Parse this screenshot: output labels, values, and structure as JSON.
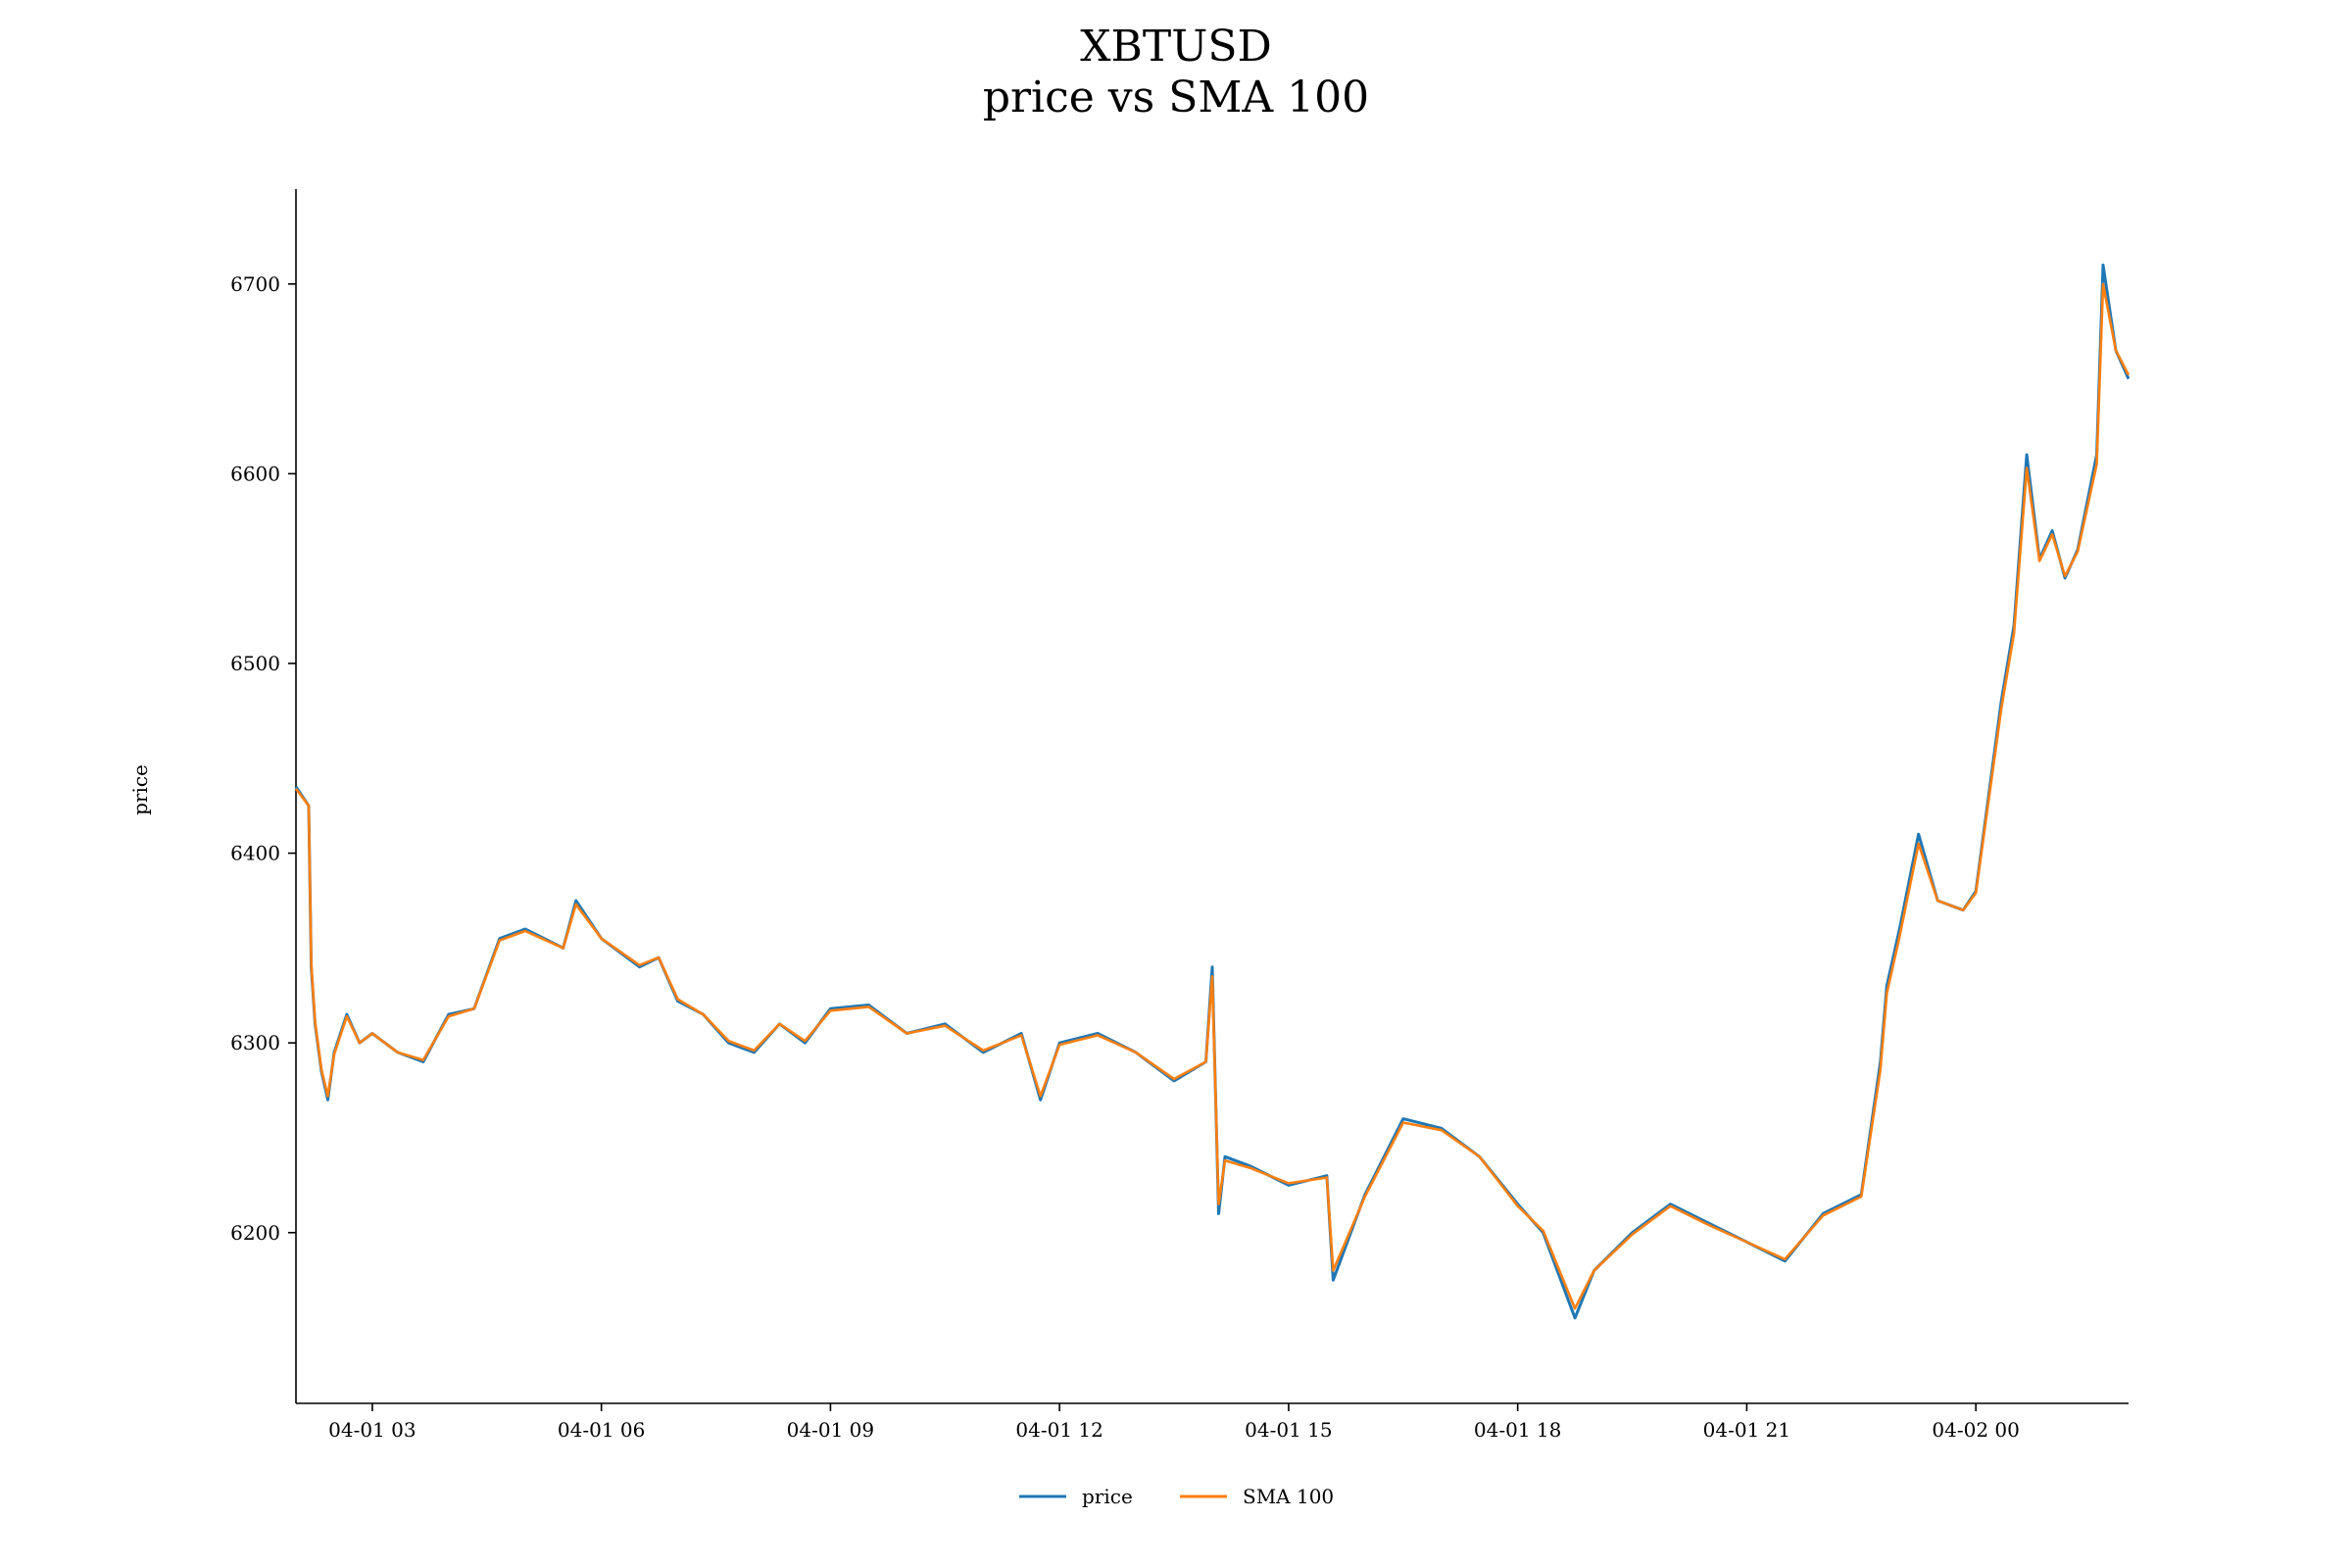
{
  "chart_data": {
    "type": "line",
    "title": "XBTUSD",
    "subtitle": "price vs SMA 100",
    "xlabel": "",
    "ylabel": "price",
    "x_axis_kind": "datetime",
    "xlim": [
      "2018-04-01 02:00",
      "2018-04-02 02:00"
    ],
    "ylim": [
      6110,
      6750
    ],
    "x_ticks": [
      {
        "x": "2018-04-01 03:00",
        "label": "04-01 03"
      },
      {
        "x": "2018-04-01 06:00",
        "label": "04-01 06"
      },
      {
        "x": "2018-04-01 09:00",
        "label": "04-01 09"
      },
      {
        "x": "2018-04-01 12:00",
        "label": "04-01 12"
      },
      {
        "x": "2018-04-01 15:00",
        "label": "04-01 15"
      },
      {
        "x": "2018-04-01 18:00",
        "label": "04-01 18"
      },
      {
        "x": "2018-04-01 21:00",
        "label": "04-01 21"
      },
      {
        "x": "2018-04-02 00:00",
        "label": "04-02 00"
      }
    ],
    "y_ticks": [
      6200,
      6300,
      6400,
      6500,
      6600,
      6700
    ],
    "grid": false,
    "legend": "bottom-center",
    "series": [
      {
        "name": "price",
        "color": "#1f77b4",
        "x": [
          "2018-04-01 02:00",
          "2018-04-01 02:10",
          "2018-04-01 02:12",
          "2018-04-01 02:15",
          "2018-04-01 02:20",
          "2018-04-01 02:25",
          "2018-04-01 02:30",
          "2018-04-01 02:40",
          "2018-04-01 02:50",
          "2018-04-01 03:00",
          "2018-04-01 03:20",
          "2018-04-01 03:40",
          "2018-04-01 04:00",
          "2018-04-01 04:20",
          "2018-04-01 04:40",
          "2018-04-01 05:00",
          "2018-04-01 05:30",
          "2018-04-01 05:40",
          "2018-04-01 06:00",
          "2018-04-01 06:30",
          "2018-04-01 06:45",
          "2018-04-01 07:00",
          "2018-04-01 07:20",
          "2018-04-01 07:40",
          "2018-04-01 08:00",
          "2018-04-01 08:20",
          "2018-04-01 08:40",
          "2018-04-01 09:00",
          "2018-04-01 09:30",
          "2018-04-01 10:00",
          "2018-04-01 10:30",
          "2018-04-01 11:00",
          "2018-04-01 11:30",
          "2018-04-01 11:45",
          "2018-04-01 12:00",
          "2018-04-01 12:30",
          "2018-04-01 13:00",
          "2018-04-01 13:30",
          "2018-04-01 13:55",
          "2018-04-01 14:00",
          "2018-04-01 14:05",
          "2018-04-01 14:10",
          "2018-04-01 14:30",
          "2018-04-01 15:00",
          "2018-04-01 15:30",
          "2018-04-01 15:35",
          "2018-04-01 16:00",
          "2018-04-01 16:30",
          "2018-04-01 17:00",
          "2018-04-01 17:30",
          "2018-04-01 18:00",
          "2018-04-01 18:20",
          "2018-04-01 18:45",
          "2018-04-01 19:00",
          "2018-04-01 19:30",
          "2018-04-01 20:00",
          "2018-04-01 20:30",
          "2018-04-01 21:00",
          "2018-04-01 21:30",
          "2018-04-01 22:00",
          "2018-04-01 22:30",
          "2018-04-01 22:45",
          "2018-04-01 22:50",
          "2018-04-01 23:00",
          "2018-04-01 23:15",
          "2018-04-01 23:30",
          "2018-04-01 23:50",
          "2018-04-02 00:00",
          "2018-04-02 00:20",
          "2018-04-02 00:30",
          "2018-04-02 00:40",
          "2018-04-02 00:50",
          "2018-04-02 01:00",
          "2018-04-02 01:10",
          "2018-04-02 01:20",
          "2018-04-02 01:35",
          "2018-04-02 01:40",
          "2018-04-02 01:50",
          "2018-04-02 02:00"
        ],
        "y": [
          6435,
          6425,
          6340,
          6310,
          6285,
          6270,
          6295,
          6315,
          6300,
          6305,
          6295,
          6290,
          6315,
          6318,
          6355,
          6360,
          6350,
          6375,
          6355,
          6340,
          6345,
          6322,
          6315,
          6300,
          6295,
          6310,
          6300,
          6318,
          6320,
          6305,
          6310,
          6295,
          6305,
          6270,
          6300,
          6305,
          6295,
          6280,
          6290,
          6340,
          6210,
          6240,
          6235,
          6225,
          6230,
          6175,
          6220,
          6260,
          6255,
          6240,
          6215,
          6200,
          6155,
          6180,
          6200,
          6215,
          6205,
          6195,
          6185,
          6210,
          6220,
          6290,
          6330,
          6360,
          6410,
          6375,
          6370,
          6380,
          6480,
          6520,
          6610,
          6555,
          6570,
          6545,
          6560,
          6610,
          6710,
          6665,
          6650
        ]
      },
      {
        "name": "SMA 100",
        "color": "#ff7f0e",
        "x": [
          "2018-04-01 02:00",
          "2018-04-01 02:10",
          "2018-04-01 02:12",
          "2018-04-01 02:15",
          "2018-04-01 02:20",
          "2018-04-01 02:25",
          "2018-04-01 02:30",
          "2018-04-01 02:40",
          "2018-04-01 02:50",
          "2018-04-01 03:00",
          "2018-04-01 03:20",
          "2018-04-01 03:40",
          "2018-04-01 04:00",
          "2018-04-01 04:20",
          "2018-04-01 04:40",
          "2018-04-01 05:00",
          "2018-04-01 05:30",
          "2018-04-01 05:40",
          "2018-04-01 06:00",
          "2018-04-01 06:30",
          "2018-04-01 06:45",
          "2018-04-01 07:00",
          "2018-04-01 07:20",
          "2018-04-01 07:40",
          "2018-04-01 08:00",
          "2018-04-01 08:20",
          "2018-04-01 08:40",
          "2018-04-01 09:00",
          "2018-04-01 09:30",
          "2018-04-01 10:00",
          "2018-04-01 10:30",
          "2018-04-01 11:00",
          "2018-04-01 11:30",
          "2018-04-01 11:45",
          "2018-04-01 12:00",
          "2018-04-01 12:30",
          "2018-04-01 13:00",
          "2018-04-01 13:30",
          "2018-04-01 13:55",
          "2018-04-01 14:00",
          "2018-04-01 14:05",
          "2018-04-01 14:10",
          "2018-04-01 14:30",
          "2018-04-01 15:00",
          "2018-04-01 15:30",
          "2018-04-01 15:35",
          "2018-04-01 16:00",
          "2018-04-01 16:30",
          "2018-04-01 17:00",
          "2018-04-01 17:30",
          "2018-04-01 18:00",
          "2018-04-01 18:20",
          "2018-04-01 18:45",
          "2018-04-01 19:00",
          "2018-04-01 19:30",
          "2018-04-01 20:00",
          "2018-04-01 20:30",
          "2018-04-01 21:00",
          "2018-04-01 21:30",
          "2018-04-01 22:00",
          "2018-04-01 22:30",
          "2018-04-01 22:45",
          "2018-04-01 22:50",
          "2018-04-01 23:00",
          "2018-04-01 23:15",
          "2018-04-01 23:30",
          "2018-04-01 23:50",
          "2018-04-02 00:00",
          "2018-04-02 00:20",
          "2018-04-02 00:30",
          "2018-04-02 00:40",
          "2018-04-02 00:50",
          "2018-04-02 01:00",
          "2018-04-02 01:10",
          "2018-04-02 01:20",
          "2018-04-02 01:35",
          "2018-04-02 01:40",
          "2018-04-02 01:50",
          "2018-04-02 02:00"
        ],
        "y": [
          6434,
          6425,
          6342,
          6311,
          6286,
          6272,
          6294,
          6314,
          6300,
          6305,
          6295,
          6291,
          6314,
          6318,
          6354,
          6359,
          6350,
          6373,
          6355,
          6341,
          6345,
          6323,
          6315,
          6301,
          6296,
          6310,
          6301,
          6317,
          6319,
          6305,
          6309,
          6296,
          6304,
          6272,
          6299,
          6304,
          6295,
          6281,
          6290,
          6335,
          6215,
          6238,
          6234,
          6226,
          6229,
          6180,
          6219,
          6258,
          6254,
          6240,
          6214,
          6201,
          6160,
          6180,
          6199,
          6214,
          6204,
          6195,
          6186,
          6209,
          6219,
          6286,
          6326,
          6356,
          6405,
          6375,
          6370,
          6379,
          6476,
          6516,
          6603,
          6554,
          6568,
          6546,
          6559,
          6605,
          6700,
          6665,
          6652
        ]
      }
    ]
  }
}
